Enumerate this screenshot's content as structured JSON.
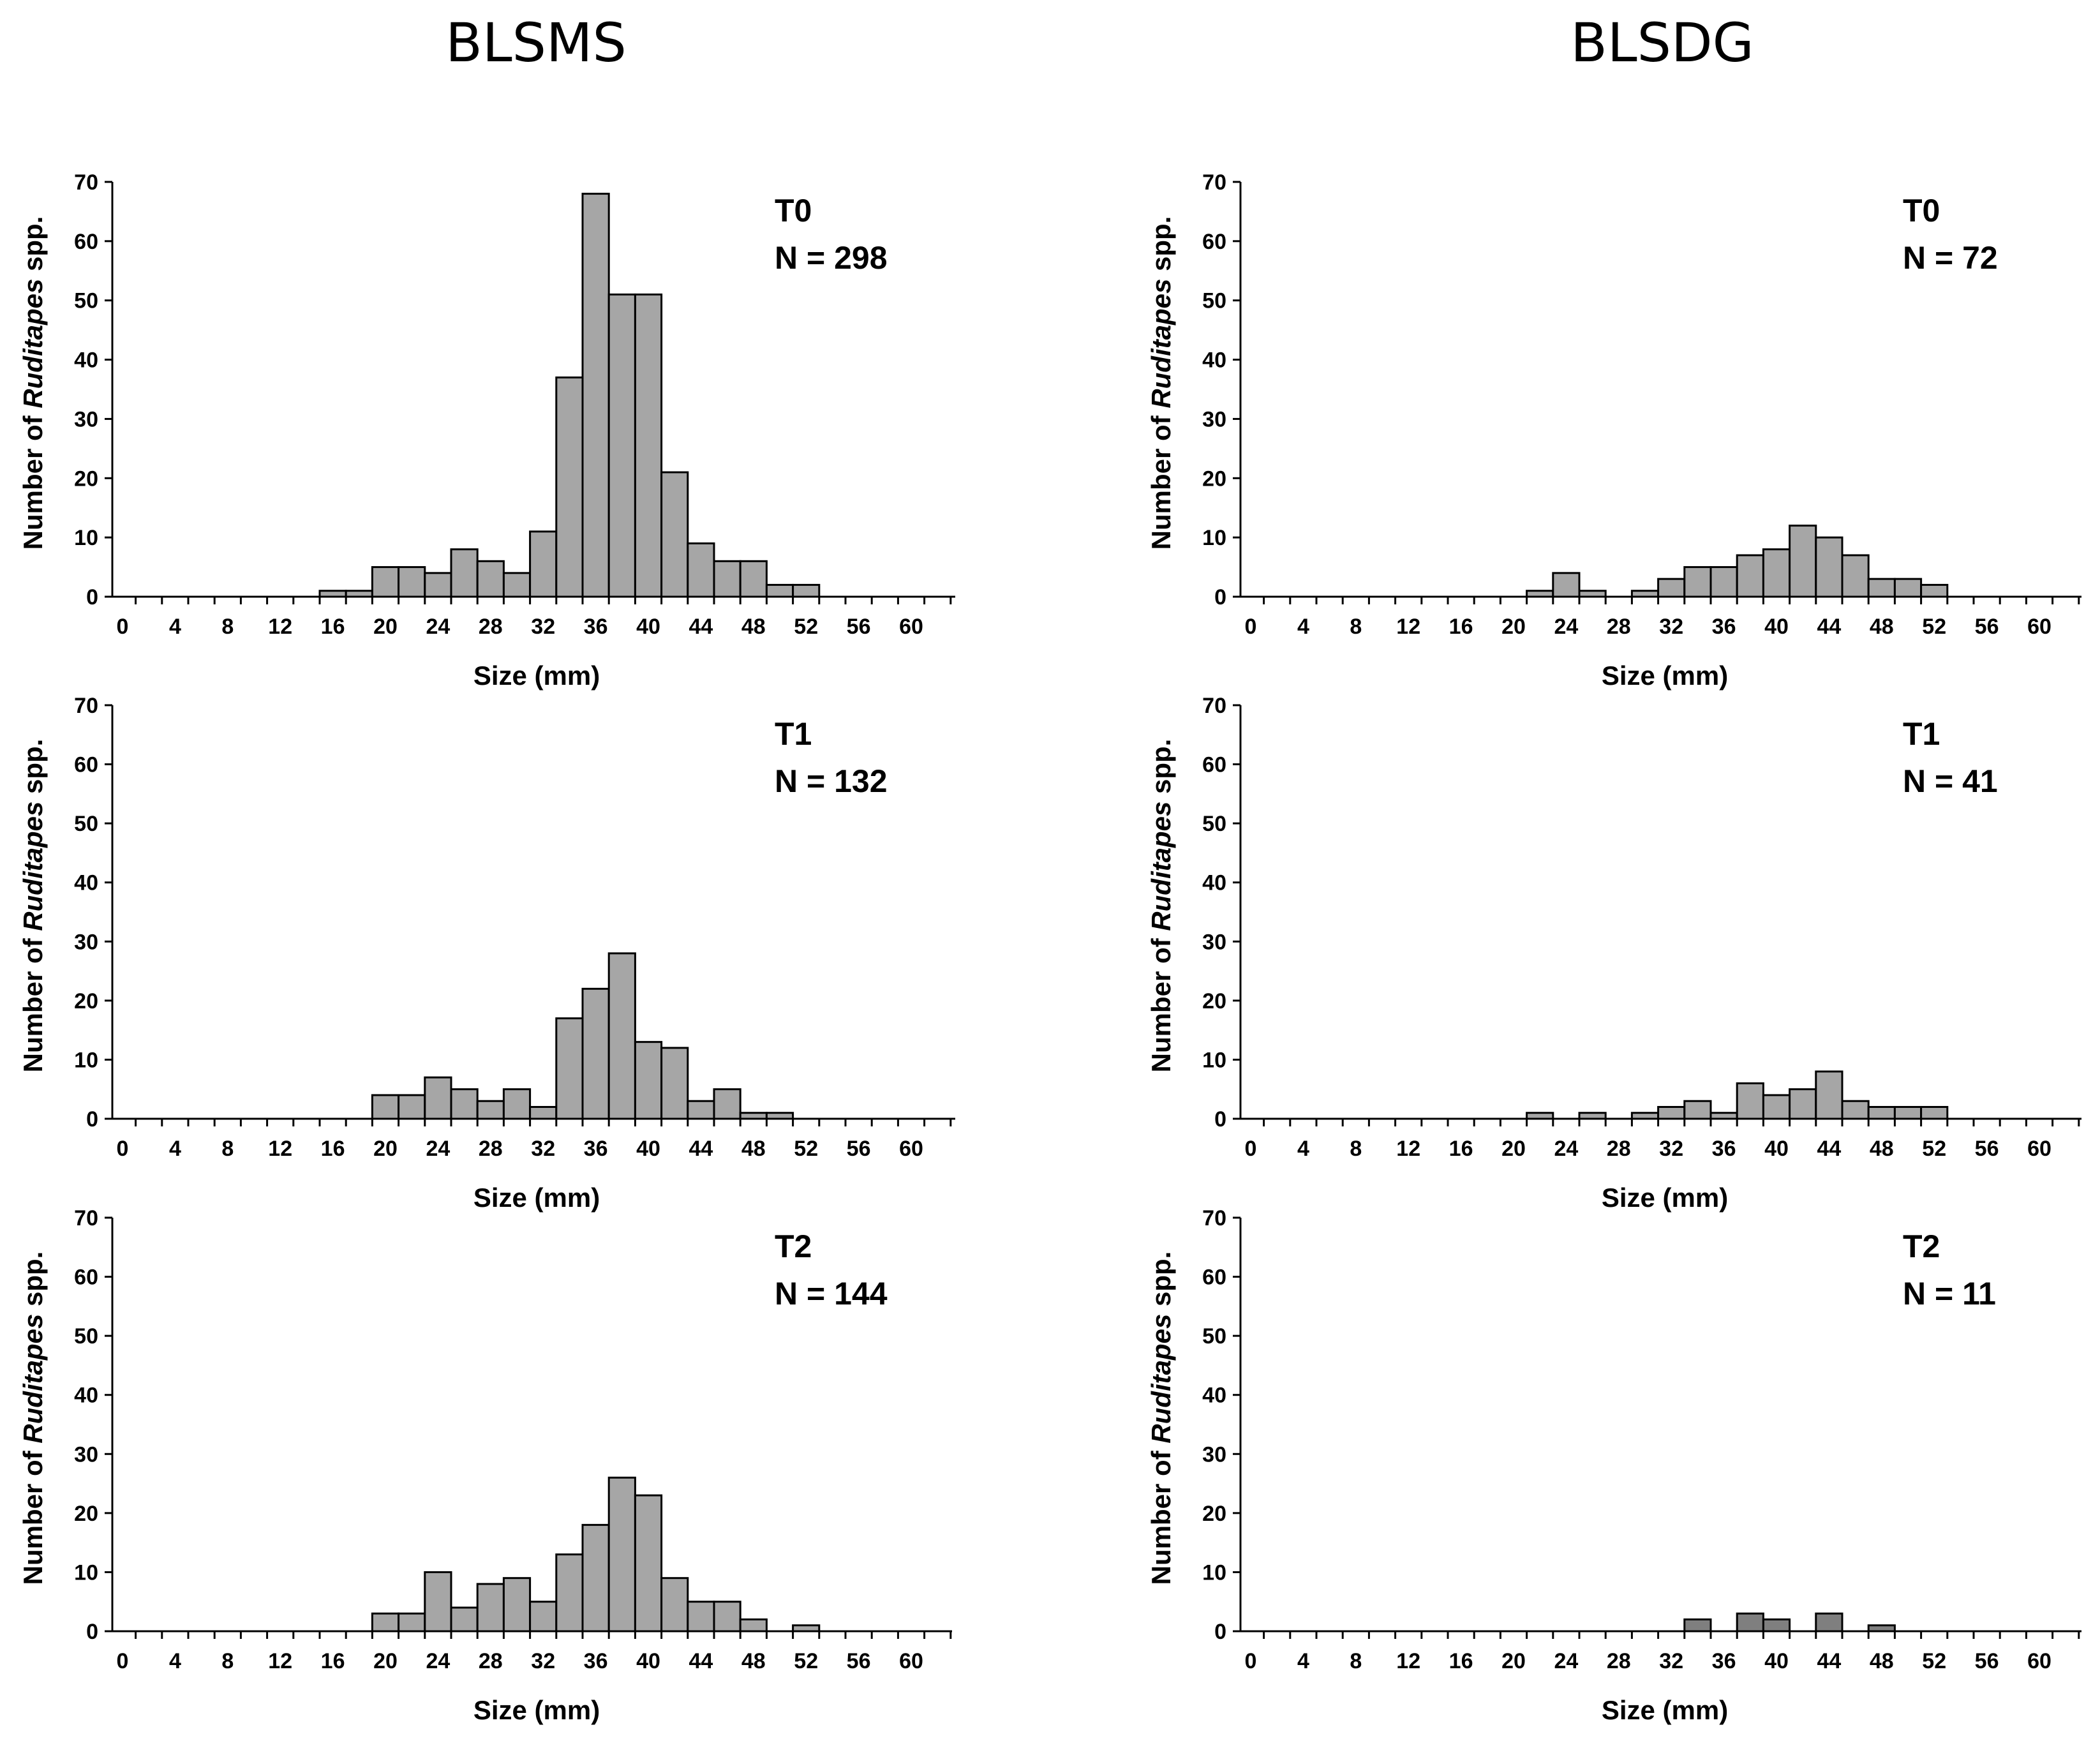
{
  "columns": [
    "BLSMS",
    "BLSDG"
  ],
  "chart_data": [
    {
      "type": "bar",
      "panel": "BLSMS T0",
      "period": "T0",
      "n_label": "N = 298",
      "xlabel": "Size (mm)",
      "ylabel_prefix": "Number of ",
      "ylabel_italic": "Ruditapes",
      "ylabel_suffix": " spp.",
      "ylim": [
        0,
        70
      ],
      "yticks": [
        0,
        10,
        20,
        30,
        40,
        50,
        60,
        70
      ],
      "xticks": [
        0,
        4,
        8,
        12,
        16,
        20,
        24,
        28,
        32,
        36,
        40,
        44,
        48,
        52,
        56,
        60
      ],
      "bin_width": 2,
      "bin_starts": [
        15,
        17,
        19,
        21,
        23,
        25,
        27,
        29,
        31,
        33,
        35,
        37,
        39,
        41,
        43,
        45,
        47,
        49,
        51
      ],
      "values": [
        1,
        1,
        5,
        5,
        4,
        8,
        6,
        4,
        11,
        37,
        68,
        51,
        51,
        21,
        9,
        6,
        6,
        2,
        2
      ],
      "bar_color": "#a6a6a6"
    },
    {
      "type": "bar",
      "panel": "BLSDG T0",
      "period": "T0",
      "n_label": "N = 72",
      "xlabel": "Size (mm)",
      "ylabel_prefix": "Number of ",
      "ylabel_italic": "Ruditapes",
      "ylabel_suffix": " spp.",
      "ylim": [
        0,
        70
      ],
      "yticks": [
        0,
        10,
        20,
        30,
        40,
        50,
        60,
        70
      ],
      "xticks": [
        0,
        4,
        8,
        12,
        16,
        20,
        24,
        28,
        32,
        36,
        40,
        44,
        48,
        52,
        56,
        60
      ],
      "bin_width": 2,
      "bin_starts": [
        21,
        23,
        25,
        27,
        29,
        31,
        33,
        35,
        37,
        39,
        41,
        43,
        45,
        47,
        49,
        51
      ],
      "values": [
        1,
        4,
        1,
        0,
        1,
        3,
        5,
        5,
        7,
        8,
        12,
        10,
        7,
        3,
        3,
        2
      ],
      "bar_color": "#a6a6a6"
    },
    {
      "type": "bar",
      "panel": "BLSMS T1",
      "period": "T1",
      "n_label": "N = 132",
      "xlabel": "Size (mm)",
      "ylabel_prefix": "Number of ",
      "ylabel_italic": "Ruditapes",
      "ylabel_suffix": " spp.",
      "ylim": [
        0,
        70
      ],
      "yticks": [
        0,
        10,
        20,
        30,
        40,
        50,
        60,
        70
      ],
      "xticks": [
        0,
        4,
        8,
        12,
        16,
        20,
        24,
        28,
        32,
        36,
        40,
        44,
        48,
        52,
        56,
        60
      ],
      "bin_width": 2,
      "bin_starts": [
        19,
        21,
        23,
        25,
        27,
        29,
        31,
        33,
        35,
        37,
        39,
        41,
        43,
        45,
        47,
        49
      ],
      "values": [
        4,
        4,
        7,
        5,
        3,
        5,
        2,
        17,
        22,
        28,
        13,
        12,
        3,
        5,
        1,
        1
      ],
      "bar_color": "#a6a6a6"
    },
    {
      "type": "bar",
      "panel": "BLSDG T1",
      "period": "T1",
      "n_label": "N = 41",
      "xlabel": "Size (mm)",
      "ylabel_prefix": "Number of ",
      "ylabel_italic": "Ruditapes",
      "ylabel_suffix": " spp.",
      "ylim": [
        0,
        70
      ],
      "yticks": [
        0,
        10,
        20,
        30,
        40,
        50,
        60,
        70
      ],
      "xticks": [
        0,
        4,
        8,
        12,
        16,
        20,
        24,
        28,
        32,
        36,
        40,
        44,
        48,
        52,
        56,
        60
      ],
      "bin_width": 2,
      "bin_starts": [
        21,
        23,
        25,
        27,
        29,
        31,
        33,
        35,
        37,
        39,
        41,
        43,
        45,
        47,
        49,
        51
      ],
      "values": [
        1,
        0,
        1,
        0,
        1,
        2,
        3,
        1,
        6,
        4,
        5,
        8,
        3,
        2,
        2,
        2
      ],
      "bar_color": "#a6a6a6"
    },
    {
      "type": "bar",
      "panel": "BLSMS T2",
      "period": "T2",
      "n_label": "N = 144",
      "xlabel": "Size (mm)",
      "ylabel_prefix": "Number of ",
      "ylabel_italic": "Ruditapes",
      "ylabel_suffix": " spp.",
      "ylim": [
        0,
        70
      ],
      "yticks": [
        0,
        10,
        20,
        30,
        40,
        50,
        60,
        70
      ],
      "xticks": [
        0,
        4,
        8,
        12,
        16,
        20,
        24,
        28,
        32,
        36,
        40,
        44,
        48,
        52,
        56,
        60
      ],
      "bin_width": 2,
      "bin_starts": [
        19,
        21,
        23,
        25,
        27,
        29,
        31,
        33,
        35,
        37,
        39,
        41,
        43,
        45,
        47,
        49,
        51
      ],
      "values": [
        3,
        3,
        10,
        4,
        8,
        9,
        5,
        13,
        18,
        26,
        23,
        9,
        5,
        5,
        2,
        0,
        1
      ],
      "bar_color": "#a6a6a6"
    },
    {
      "type": "bar",
      "panel": "BLSDG T2",
      "period": "T2",
      "n_label": "N = 11",
      "xlabel": "Size (mm)",
      "ylabel_prefix": "Number of ",
      "ylabel_italic": "Ruditapes",
      "ylabel_suffix": " spp.",
      "ylim": [
        0,
        70
      ],
      "yticks": [
        0,
        10,
        20,
        30,
        40,
        50,
        60,
        70
      ],
      "xticks": [
        0,
        4,
        8,
        12,
        16,
        20,
        24,
        28,
        32,
        36,
        40,
        44,
        48,
        52,
        56,
        60
      ],
      "bin_width": 2,
      "bin_starts": [
        33,
        35,
        37,
        39,
        41,
        43,
        45,
        47
      ],
      "values": [
        2,
        0,
        3,
        2,
        0,
        3,
        0,
        1
      ],
      "bar_color": "#7f7f7f"
    }
  ]
}
